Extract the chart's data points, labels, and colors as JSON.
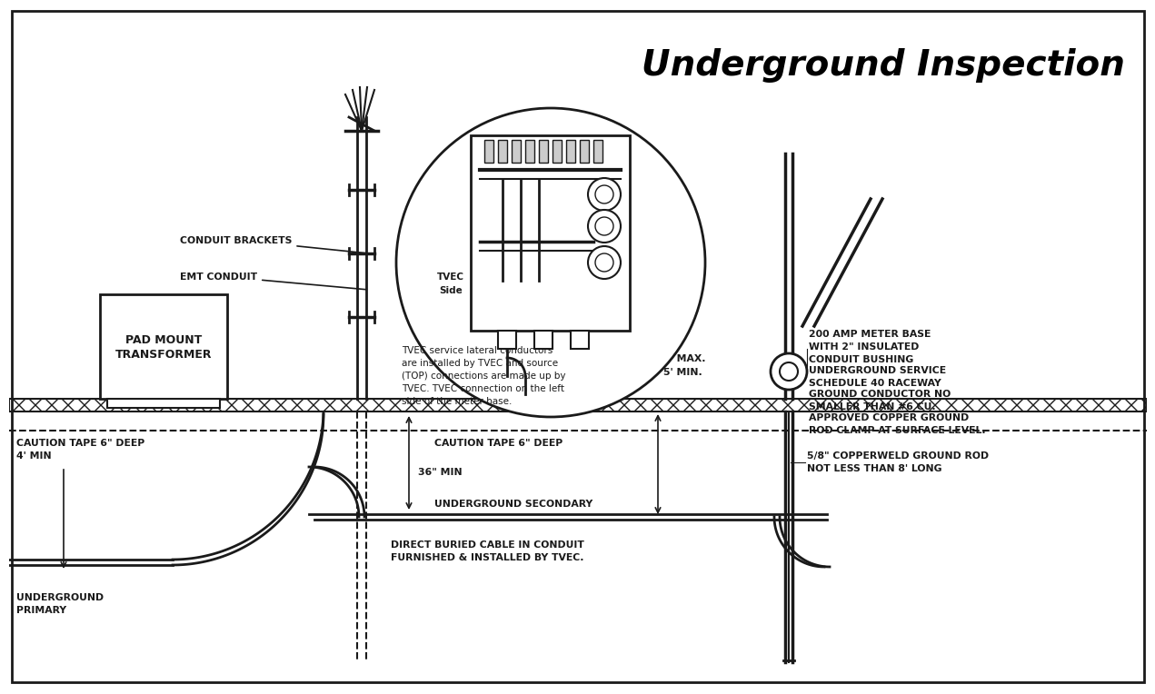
{
  "title": "Underground Inspection",
  "bg_color": "#ffffff",
  "line_color": "#1a1a1a",
  "labels": {
    "conduit_brackets": "CONDUIT BRACKETS",
    "emt_conduit": "EMT CONDUIT",
    "pad_mount": [
      "PAD MOUNT",
      "TRANSFORMER"
    ],
    "tvec_side": [
      "TVEC",
      "Side"
    ],
    "tvec_desc": [
      "TVEC service lateral conductors",
      "are installed by TVEC and source",
      "(TOP) connections are made up by",
      "TVEC. TVEC connection on the left",
      "side of the meter base."
    ],
    "meter_base": [
      "200 AMP METER BASE",
      "WITH 2\" INSULATED",
      "CONDUIT BUSHING"
    ],
    "underground_service": [
      "UNDERGROUND SERVICE",
      "SCHEDULE 40 RACEWAY"
    ],
    "ground_conductor": [
      "GROUND CONDUCTOR NO",
      "SMALLER THAN #6 CU."
    ],
    "approved_copper": [
      "APPROVED COPPER GROUND",
      "ROD CLAMP AT SURFACE LEVEL."
    ],
    "caution_left": [
      "CAUTION TAPE 6\" DEEP",
      "4' MIN"
    ],
    "caution_right": "CAUTION TAPE 6\" DEEP",
    "underground_primary": [
      "UNDERGROUND",
      "PRIMARY"
    ],
    "underground_secondary": "UNDERGROUND SECONDARY",
    "direct_buried": [
      "DIRECT BURIED CABLE IN CONDUIT",
      "FURNISHED & INSTALLED BY TVEC."
    ],
    "depth_label": [
      "6' MAX.",
      "5' MIN."
    ],
    "ground_rod": [
      "5/8\" COPPERWELD GROUND ROD",
      "NOT LESS THAN 8' LONG"
    ],
    "36min": "36\" MIN"
  }
}
